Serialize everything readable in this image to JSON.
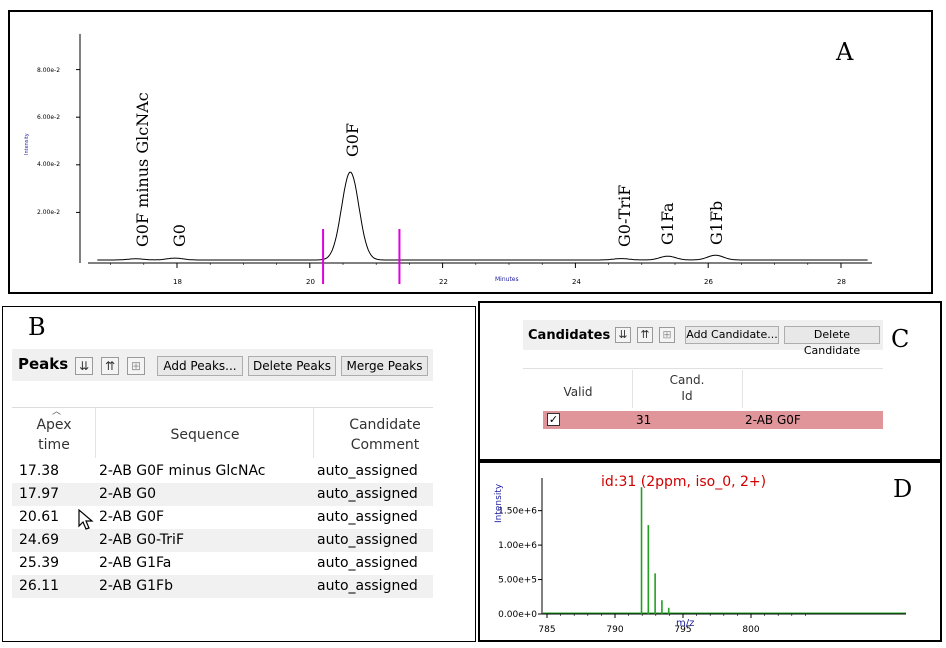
{
  "panel_a": {
    "letter": "A",
    "y_axis_title": "Intensity",
    "y_ticks": [
      "8.00e-2",
      "6.00e-2",
      "4.00e-2",
      "2.00e-2"
    ],
    "x_axis_title": "Minutes",
    "x_ticks": [
      "18",
      "20",
      "22",
      "24",
      "26",
      "28"
    ],
    "peak_labels": [
      "G0F minus GlcNAc",
      "G0",
      "G0F",
      "G0-TriF",
      "G1Fa",
      "G1Fb"
    ],
    "colors": {
      "trace": "#000000",
      "integration_markers": "#e000e0",
      "axis_title": "#1a1aa0"
    }
  },
  "panel_b": {
    "letter": "B",
    "toolbar": {
      "title": "Peaks",
      "icons": [
        "sort-descending-icon",
        "sort-ascending-icon",
        "grid-options-icon"
      ],
      "add_label": "Add Peaks...",
      "delete_label": "Delete Peaks",
      "merge_label": "Merge Peaks"
    },
    "columns": {
      "apex_line1": "Apex",
      "apex_line2": "time",
      "sequence": "Sequence",
      "comment_line1": "Candidate",
      "comment_line2": "Comment"
    },
    "rows": [
      {
        "apex": "17.38",
        "sequence": "2-AB G0F minus GlcNAc",
        "comment": "auto_assigned"
      },
      {
        "apex": "17.97",
        "sequence": "2-AB G0",
        "comment": "auto_assigned"
      },
      {
        "apex": "20.61",
        "sequence": "2-AB G0F",
        "comment": "auto_assigned"
      },
      {
        "apex": "24.69",
        "sequence": "2-AB G0-TriF",
        "comment": "auto_assigned"
      },
      {
        "apex": "25.39",
        "sequence": "2-AB G1Fa",
        "comment": "auto_assigned"
      },
      {
        "apex": "26.11",
        "sequence": "2-AB G1Fb",
        "comment": "auto_assigned"
      }
    ]
  },
  "panel_c": {
    "letter": "C",
    "toolbar": {
      "title": "Candidates",
      "add_label": "Add Candidate...",
      "delete_label": "Delete Candidate"
    },
    "columns": {
      "valid": "Valid",
      "cand_line1": "Cand.",
      "cand_line2": "Id"
    },
    "row": {
      "valid": true,
      "cand_id": "31",
      "name": "2-AB G0F"
    },
    "colors": {
      "selected_row": "#e0959a"
    }
  },
  "panel_d": {
    "letter": "D",
    "annotation": "id:31 (2ppm, iso_0, 2+)",
    "y_axis_title": "Intensity",
    "x_axis_title": "m/z",
    "colors": {
      "spectrum": "#22a022",
      "annotation": "#d00000",
      "axis_title": "#1a1aa0"
    }
  },
  "chart_data": [
    {
      "type": "line",
      "title": "",
      "xlabel": "Minutes",
      "ylabel": "Intensity",
      "xlim": [
        16.8,
        28.4
      ],
      "ylim": [
        0,
        0.095
      ],
      "xticks": [
        18,
        20,
        22,
        24,
        26,
        28
      ],
      "yticks": [
        0.02,
        0.04,
        0.06,
        0.08
      ],
      "peaks": [
        {
          "label": "G0F minus GlcNAc",
          "x": 17.38,
          "height": 0.0005
        },
        {
          "label": "G0",
          "x": 17.97,
          "height": 0.0008
        },
        {
          "label": "G0F",
          "x": 20.61,
          "height": 0.037
        },
        {
          "label": "G0-TriF",
          "x": 24.69,
          "height": 0.0006
        },
        {
          "label": "G1Fa",
          "x": 25.39,
          "height": 0.0016
        },
        {
          "label": "G1Fb",
          "x": 26.11,
          "height": 0.002
        }
      ],
      "integration_bounds": [
        20.2,
        21.35
      ]
    },
    {
      "type": "bar",
      "title": "id:31 (2ppm, iso_0, 2+)",
      "xlabel": "m/z",
      "ylabel": "Intensity",
      "xlim": [
        784.3,
        804.8
      ],
      "ylim": [
        0,
        2000000
      ],
      "xticks": [
        785,
        790,
        795,
        800
      ],
      "yticks": [
        0,
        500000,
        1000000,
        1500000
      ],
      "ytick_labels": [
        "0.00e+0",
        "5.00e+5",
        "1.00e+6",
        "1.50e+6"
      ],
      "peaks_mz": [
        791.95,
        792.45,
        792.95,
        793.45,
        793.95
      ],
      "peaks_intensity": [
        1840000,
        1290000,
        590000,
        200000,
        90000
      ]
    }
  ]
}
